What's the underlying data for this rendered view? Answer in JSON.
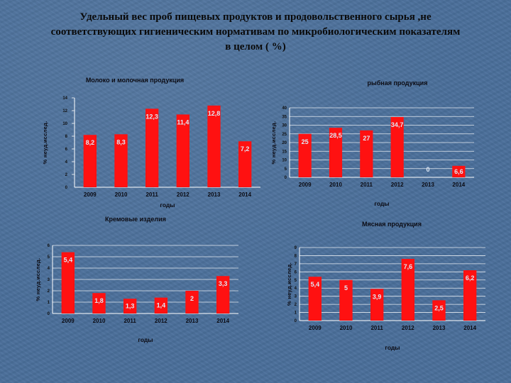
{
  "slide": {
    "title_lines": [
      "Удельный вес проб пищевых продуктов и продовольственного сырья ,не",
      "соответствующих гигиеническим нормативам по микробиологическим показателям",
      "в целом ( %)"
    ]
  },
  "chart_data": [
    {
      "type": "bar",
      "title": "Молоко и молочная продукция",
      "xlabel": "годы",
      "ylabel": "% неуд.исслед.",
      "categories": [
        "2009",
        "2010",
        "2011",
        "2012",
        "2013",
        "2014"
      ],
      "values": [
        8.2,
        8.3,
        12.3,
        11.4,
        12.8,
        7.2
      ],
      "value_labels": [
        "8,2",
        "8,3",
        "12,3",
        "11,4",
        "12,8",
        "7,2"
      ],
      "yticks": [
        0,
        2,
        4,
        6,
        8,
        10,
        12,
        14
      ],
      "ylim": [
        0,
        14
      ],
      "grid": false,
      "bar_color": "#ff1111"
    },
    {
      "type": "bar",
      "title": "рыбная продукция",
      "xlabel": "годы",
      "ylabel": "% неуд.исслед.",
      "categories": [
        "2009",
        "2010",
        "2011",
        "2012",
        "2013",
        "2014"
      ],
      "values": [
        25,
        28.5,
        27,
        34.7,
        0,
        6.6
      ],
      "value_labels": [
        "25",
        "28,5",
        "27",
        "34,7",
        "0",
        "6,6"
      ],
      "yticks": [
        0,
        5,
        10,
        15,
        20,
        25,
        30,
        35,
        40
      ],
      "ylim": [
        0,
        40
      ],
      "grid": true,
      "bar_color": "#ff1111"
    },
    {
      "type": "bar",
      "title": "Кремовые изделия",
      "xlabel": "годы",
      "ylabel": "% неуд.исслед.",
      "categories": [
        "2009",
        "2010",
        "2011",
        "2012",
        "2013",
        "2014"
      ],
      "values": [
        5.4,
        1.8,
        1.3,
        1.4,
        2,
        3.3
      ],
      "value_labels": [
        "5,4",
        "1,8",
        "1,3",
        "1,4",
        "2",
        "3,3"
      ],
      "yticks": [
        0,
        1,
        2,
        3,
        4,
        5,
        6
      ],
      "ylim": [
        0,
        6
      ],
      "grid": true,
      "bar_color": "#ff1111"
    },
    {
      "type": "bar",
      "title": "Мясная продукция",
      "xlabel": "годы",
      "ylabel": "% неуд.исслед.",
      "categories": [
        "2009",
        "2010",
        "2011",
        "2012",
        "2013",
        "2014"
      ],
      "values": [
        5.4,
        5,
        3.9,
        7.6,
        2.5,
        6.2
      ],
      "value_labels": [
        "5,4",
        "5",
        "3,9",
        "7,6",
        "2,5",
        "6,2"
      ],
      "yticks": [
        0,
        1,
        2,
        3,
        4,
        5,
        6,
        7,
        8,
        9
      ],
      "ylim": [
        0,
        9
      ],
      "grid": true,
      "bar_color": "#ff1111"
    }
  ]
}
